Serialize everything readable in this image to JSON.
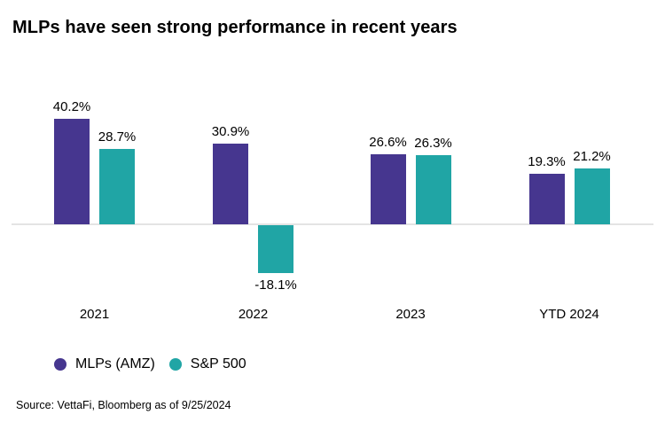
{
  "title": "MLPs have seen strong performance in recent years",
  "source": "Source: VettaFi, Bloomberg as of 9/25/2024",
  "colors": {
    "mlps": "#46368f",
    "sp500": "#20a5a5",
    "axis_line": "#e4e4e4",
    "text": "#000000",
    "background": "#ffffff"
  },
  "chart_data": {
    "type": "bar",
    "title": "MLPs have seen strong performance in recent years",
    "categories": [
      "2021",
      "2022",
      "2023",
      "YTD 2024"
    ],
    "series": [
      {
        "name": "MLPs (AMZ)",
        "color": "#46368f",
        "values": [
          40.2,
          30.9,
          26.6,
          19.3
        ],
        "labels": [
          "40.2%",
          "30.9%",
          "26.6%",
          "19.3%"
        ]
      },
      {
        "name": "S&P 500",
        "color": "#20a5a5",
        "values": [
          28.7,
          -18.1,
          26.3,
          21.2
        ],
        "labels": [
          "28.7%",
          "-18.1%",
          "26.3%",
          "21.2%"
        ]
      }
    ],
    "xlabel": "",
    "ylabel": "",
    "ylim": [
      -25,
      45
    ],
    "grid": false,
    "value_labels_shown": true,
    "legend_position": "bottom-left"
  }
}
